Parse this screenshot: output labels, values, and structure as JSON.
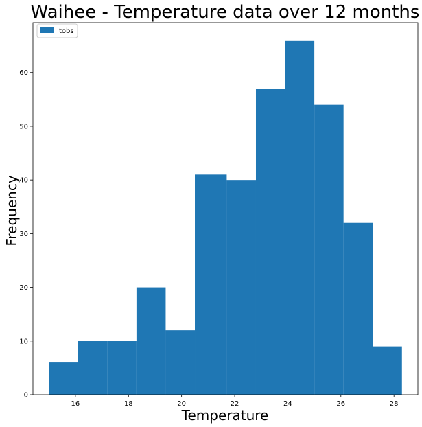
{
  "chart_data": {
    "type": "histogram",
    "title": "Waihee - Temperature data over 12 months",
    "xlabel": "Temperature",
    "ylabel": "Frequency",
    "xlim": [
      14.4,
      28.9
    ],
    "ylim": [
      0,
      69.3
    ],
    "x_ticks": [
      16,
      18,
      20,
      22,
      24,
      26,
      28
    ],
    "y_ticks": [
      0,
      10,
      20,
      30,
      40,
      50,
      60
    ],
    "bar_color": "#1f77b4",
    "legend": {
      "position": "top-left",
      "entries": [
        "tobs"
      ]
    },
    "grid": false,
    "bins": [
      {
        "x0": 15.0,
        "x1": 16.1,
        "count": 6
      },
      {
        "x0": 16.1,
        "x1": 17.2,
        "count": 10
      },
      {
        "x0": 17.2,
        "x1": 18.3,
        "count": 10
      },
      {
        "x0": 18.3,
        "x1": 19.4,
        "count": 20
      },
      {
        "x0": 19.4,
        "x1": 20.5,
        "count": 12
      },
      {
        "x0": 20.5,
        "x1": 21.7,
        "count": 41
      },
      {
        "x0": 21.7,
        "x1": 22.8,
        "count": 40
      },
      {
        "x0": 22.8,
        "x1": 23.9,
        "count": 57
      },
      {
        "x0": 23.9,
        "x1": 25.0,
        "count": 66
      },
      {
        "x0": 25.0,
        "x1": 26.1,
        "count": 54
      },
      {
        "x0": 26.1,
        "x1": 27.2,
        "count": 32
      },
      {
        "x0": 27.2,
        "x1": 28.3,
        "count": 9
      }
    ]
  }
}
